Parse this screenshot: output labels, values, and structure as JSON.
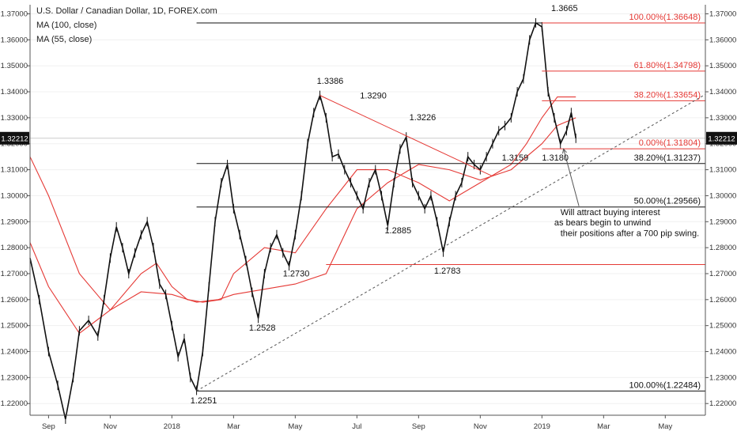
{
  "chart_data": {
    "type": "line",
    "symbol_legend": [
      "U.S. Dollar / Canadian Dollar, 1D, FOREX.com",
      "MA (100, close)",
      "MA (55, close)"
    ],
    "y_ticks": [
      "1.37000",
      "1.36000",
      "1.35000",
      "1.34000",
      "1.33000",
      "1.32000",
      "1.31000",
      "1.30000",
      "1.29000",
      "1.28000",
      "1.27000",
      "1.26000",
      "1.25000",
      "1.24000",
      "1.23000",
      "1.22000"
    ],
    "ylim": [
      1.2155,
      1.3735
    ],
    "x_ticks": [
      "Sep",
      "Nov",
      "2018",
      "Mar",
      "May",
      "Jul",
      "Sep",
      "Nov",
      "2019",
      "Mar",
      "May"
    ],
    "x_tick_times": [
      0,
      2,
      4,
      6,
      8,
      10,
      12,
      14,
      16,
      18,
      20
    ],
    "xlim": [
      -0.6,
      21.3
    ],
    "current_price": {
      "label": "1.32212",
      "value": 1.32212
    },
    "price_series": {
      "name": "USD/CAD",
      "x": [
        -0.6,
        -0.3,
        0,
        0.3,
        0.55,
        0.8,
        1.0,
        1.3,
        1.6,
        1.8,
        2.0,
        2.2,
        2.4,
        2.6,
        2.8,
        3.0,
        3.2,
        3.4,
        3.6,
        3.8,
        4.0,
        4.2,
        4.4,
        4.6,
        4.8,
        5.0,
        5.2,
        5.4,
        5.6,
        5.8,
        6.0,
        6.2,
        6.4,
        6.6,
        6.8,
        7.0,
        7.2,
        7.4,
        7.6,
        7.8,
        8.0,
        8.2,
        8.4,
        8.6,
        8.8,
        9.0,
        9.2,
        9.4,
        9.6,
        9.8,
        10.0,
        10.2,
        10.4,
        10.6,
        10.8,
        11.0,
        11.2,
        11.4,
        11.6,
        11.8,
        12.0,
        12.2,
        12.4,
        12.6,
        12.8,
        13.0,
        13.2,
        13.4,
        13.6,
        13.8,
        14.0,
        14.2,
        14.4,
        14.6,
        14.8,
        15.0,
        15.2,
        15.4,
        15.6,
        15.8,
        16.0,
        16.2,
        16.4,
        16.6,
        16.8,
        16.95,
        17.1
      ],
      "values": [
        1.276,
        1.26,
        1.24,
        1.227,
        1.214,
        1.23,
        1.248,
        1.252,
        1.246,
        1.26,
        1.276,
        1.288,
        1.28,
        1.27,
        1.278,
        1.285,
        1.29,
        1.28,
        1.266,
        1.262,
        1.25,
        1.238,
        1.245,
        1.23,
        1.2251,
        1.24,
        1.265,
        1.29,
        1.305,
        1.312,
        1.295,
        1.285,
        1.275,
        1.2628,
        1.2528,
        1.27,
        1.28,
        1.285,
        1.278,
        1.273,
        1.285,
        1.3,
        1.32,
        1.332,
        1.3386,
        1.33,
        1.315,
        1.316,
        1.31,
        1.305,
        1.3,
        1.295,
        1.305,
        1.31,
        1.3,
        1.2885,
        1.305,
        1.318,
        1.3226,
        1.305,
        1.3,
        1.295,
        1.3,
        1.29,
        1.2783,
        1.29,
        1.3,
        1.305,
        1.315,
        1.312,
        1.31,
        1.315,
        1.32,
        1.325,
        1.327,
        1.33,
        1.34,
        1.345,
        1.36,
        1.3665,
        1.365,
        1.34,
        1.33,
        1.32,
        1.325,
        1.332,
        1.3221
      ]
    },
    "ma_series": [
      {
        "name": "MA (100, close)",
        "x": [
          -0.6,
          0,
          1,
          2,
          3,
          4,
          4.8,
          5.5,
          6,
          7,
          8,
          9,
          10,
          11,
          12,
          13,
          14,
          15,
          16,
          16.5,
          17.1
        ],
        "values": [
          1.315,
          1.3,
          1.27,
          1.256,
          1.263,
          1.262,
          1.259,
          1.26,
          1.262,
          1.264,
          1.266,
          1.27,
          1.295,
          1.305,
          1.312,
          1.31,
          1.306,
          1.31,
          1.32,
          1.327,
          1.33
        ]
      },
      {
        "name": "MA (55, close)",
        "x": [
          -0.6,
          0,
          1,
          2,
          3,
          3.5,
          4,
          4.5,
          5,
          5.6,
          6,
          7,
          8,
          9,
          10,
          11,
          12,
          13,
          14,
          15,
          15.5,
          16,
          16.5,
          17.1
        ],
        "values": [
          1.282,
          1.265,
          1.247,
          1.256,
          1.27,
          1.274,
          1.265,
          1.26,
          1.259,
          1.26,
          1.27,
          1.28,
          1.278,
          1.295,
          1.31,
          1.31,
          1.305,
          1.298,
          1.305,
          1.312,
          1.32,
          1.33,
          1.338,
          1.338
        ]
      }
    ],
    "trend_lines": [
      {
        "kind": "solid",
        "color": "#111111",
        "x1": 4.8,
        "y1": 1.22484,
        "x2": 21.3,
        "y2": 1.22484
      },
      {
        "kind": "solid",
        "color": "#111111",
        "x1": 4.8,
        "y1": 1.29566,
        "x2": 21.3,
        "y2": 1.29566
      },
      {
        "kind": "solid",
        "color": "#111111",
        "x1": 4.8,
        "y1": 1.31237,
        "x2": 21.3,
        "y2": 1.31237
      },
      {
        "kind": "solid",
        "color": "#111111",
        "x1": 4.8,
        "y1": 1.3665,
        "x2": 21.3,
        "y2": 1.3665
      },
      {
        "kind": "solid",
        "color": "#e53935",
        "x1": 16.0,
        "y1": 1.36648,
        "x2": 21.3,
        "y2": 1.36648
      },
      {
        "kind": "solid",
        "color": "#e53935",
        "x1": 16.0,
        "y1": 1.34798,
        "x2": 21.3,
        "y2": 1.34798
      },
      {
        "kind": "solid",
        "color": "#e53935",
        "x1": 16.0,
        "y1": 1.33654,
        "x2": 21.3,
        "y2": 1.33654
      },
      {
        "kind": "solid",
        "color": "#e53935",
        "x1": 16.0,
        "y1": 1.31804,
        "x2": 21.3,
        "y2": 1.31804
      },
      {
        "kind": "solid",
        "color": "#e53935",
        "x1": 9.0,
        "y1": 1.2735,
        "x2": 21.3,
        "y2": 1.2735
      },
      {
        "kind": "solid",
        "color": "#e53935",
        "x1": 8.8,
        "y1": 1.3386,
        "x2": 14.4,
        "y2": 1.3075
      },
      {
        "kind": "dashed",
        "color": "#555555",
        "x1": 4.8,
        "y1": 1.22484,
        "x2": 21.3,
        "y2": 1.339
      }
    ],
    "annotations": [
      {
        "text": "1.3665",
        "x": 16.3,
        "y": 1.371,
        "cls": "anno"
      },
      {
        "text": "1.3386",
        "x": 8.7,
        "y": 1.343,
        "cls": "anno"
      },
      {
        "text": "1.3290",
        "x": 10.1,
        "y": 1.3375,
        "cls": "anno"
      },
      {
        "text": "1.3226",
        "x": 11.7,
        "y": 1.329,
        "cls": "anno"
      },
      {
        "text": "1.3159",
        "x": 14.7,
        "y": 1.3135,
        "cls": "anno"
      },
      {
        "text": "1.3180",
        "x": 16.0,
        "y": 1.3135,
        "cls": "anno"
      },
      {
        "text": "1.2885",
        "x": 10.9,
        "y": 1.2855,
        "cls": "anno"
      },
      {
        "text": "1.2783",
        "x": 12.5,
        "y": 1.27,
        "cls": "anno"
      },
      {
        "text": "1.2730",
        "x": 7.6,
        "y": 1.269,
        "cls": "anno"
      },
      {
        "text": "1.2528",
        "x": 6.5,
        "y": 1.248,
        "cls": "anno"
      },
      {
        "text": "1.2251",
        "x": 4.6,
        "y": 1.22,
        "cls": "anno"
      },
      {
        "text": "Will attract buying interest",
        "x": 16.6,
        "y": 1.2925,
        "cls": "anno"
      },
      {
        "text": "as bears begin to unwind",
        "x": 16.4,
        "y": 1.2885,
        "cls": "anno"
      },
      {
        "text": "their positions after a 700 pip swing.",
        "x": 16.6,
        "y": 1.2845,
        "cls": "anno"
      }
    ],
    "fib_labels": [
      {
        "text": "100.00%(1.36648)",
        "y": 1.36648,
        "color": "red"
      },
      {
        "text": "61.80%(1.34798)",
        "y": 1.34798,
        "color": "red"
      },
      {
        "text": "38.20%(1.33654)",
        "y": 1.33654,
        "color": "red"
      },
      {
        "text": "0.00%(1.31804)",
        "y": 1.31804,
        "color": "red"
      },
      {
        "text": "38.20%(1.31237)",
        "y": 1.31237,
        "color": "black"
      },
      {
        "text": "50.00%(1.29566)",
        "y": 1.29566,
        "color": "black"
      },
      {
        "text": "100.00%(1.22484)",
        "y": 1.22484,
        "color": "black"
      }
    ],
    "arrow": {
      "x1": 17.2,
      "y1": 1.296,
      "x2": 16.7,
      "y2": 1.318
    },
    "colors": {
      "price": "#111111",
      "ma": "#e53935",
      "fib_red": "#e53935",
      "fib_black": "#111111",
      "price_tag_bg": "#111111",
      "price_tag_text": "#ffffff",
      "axis": "#555555"
    }
  }
}
